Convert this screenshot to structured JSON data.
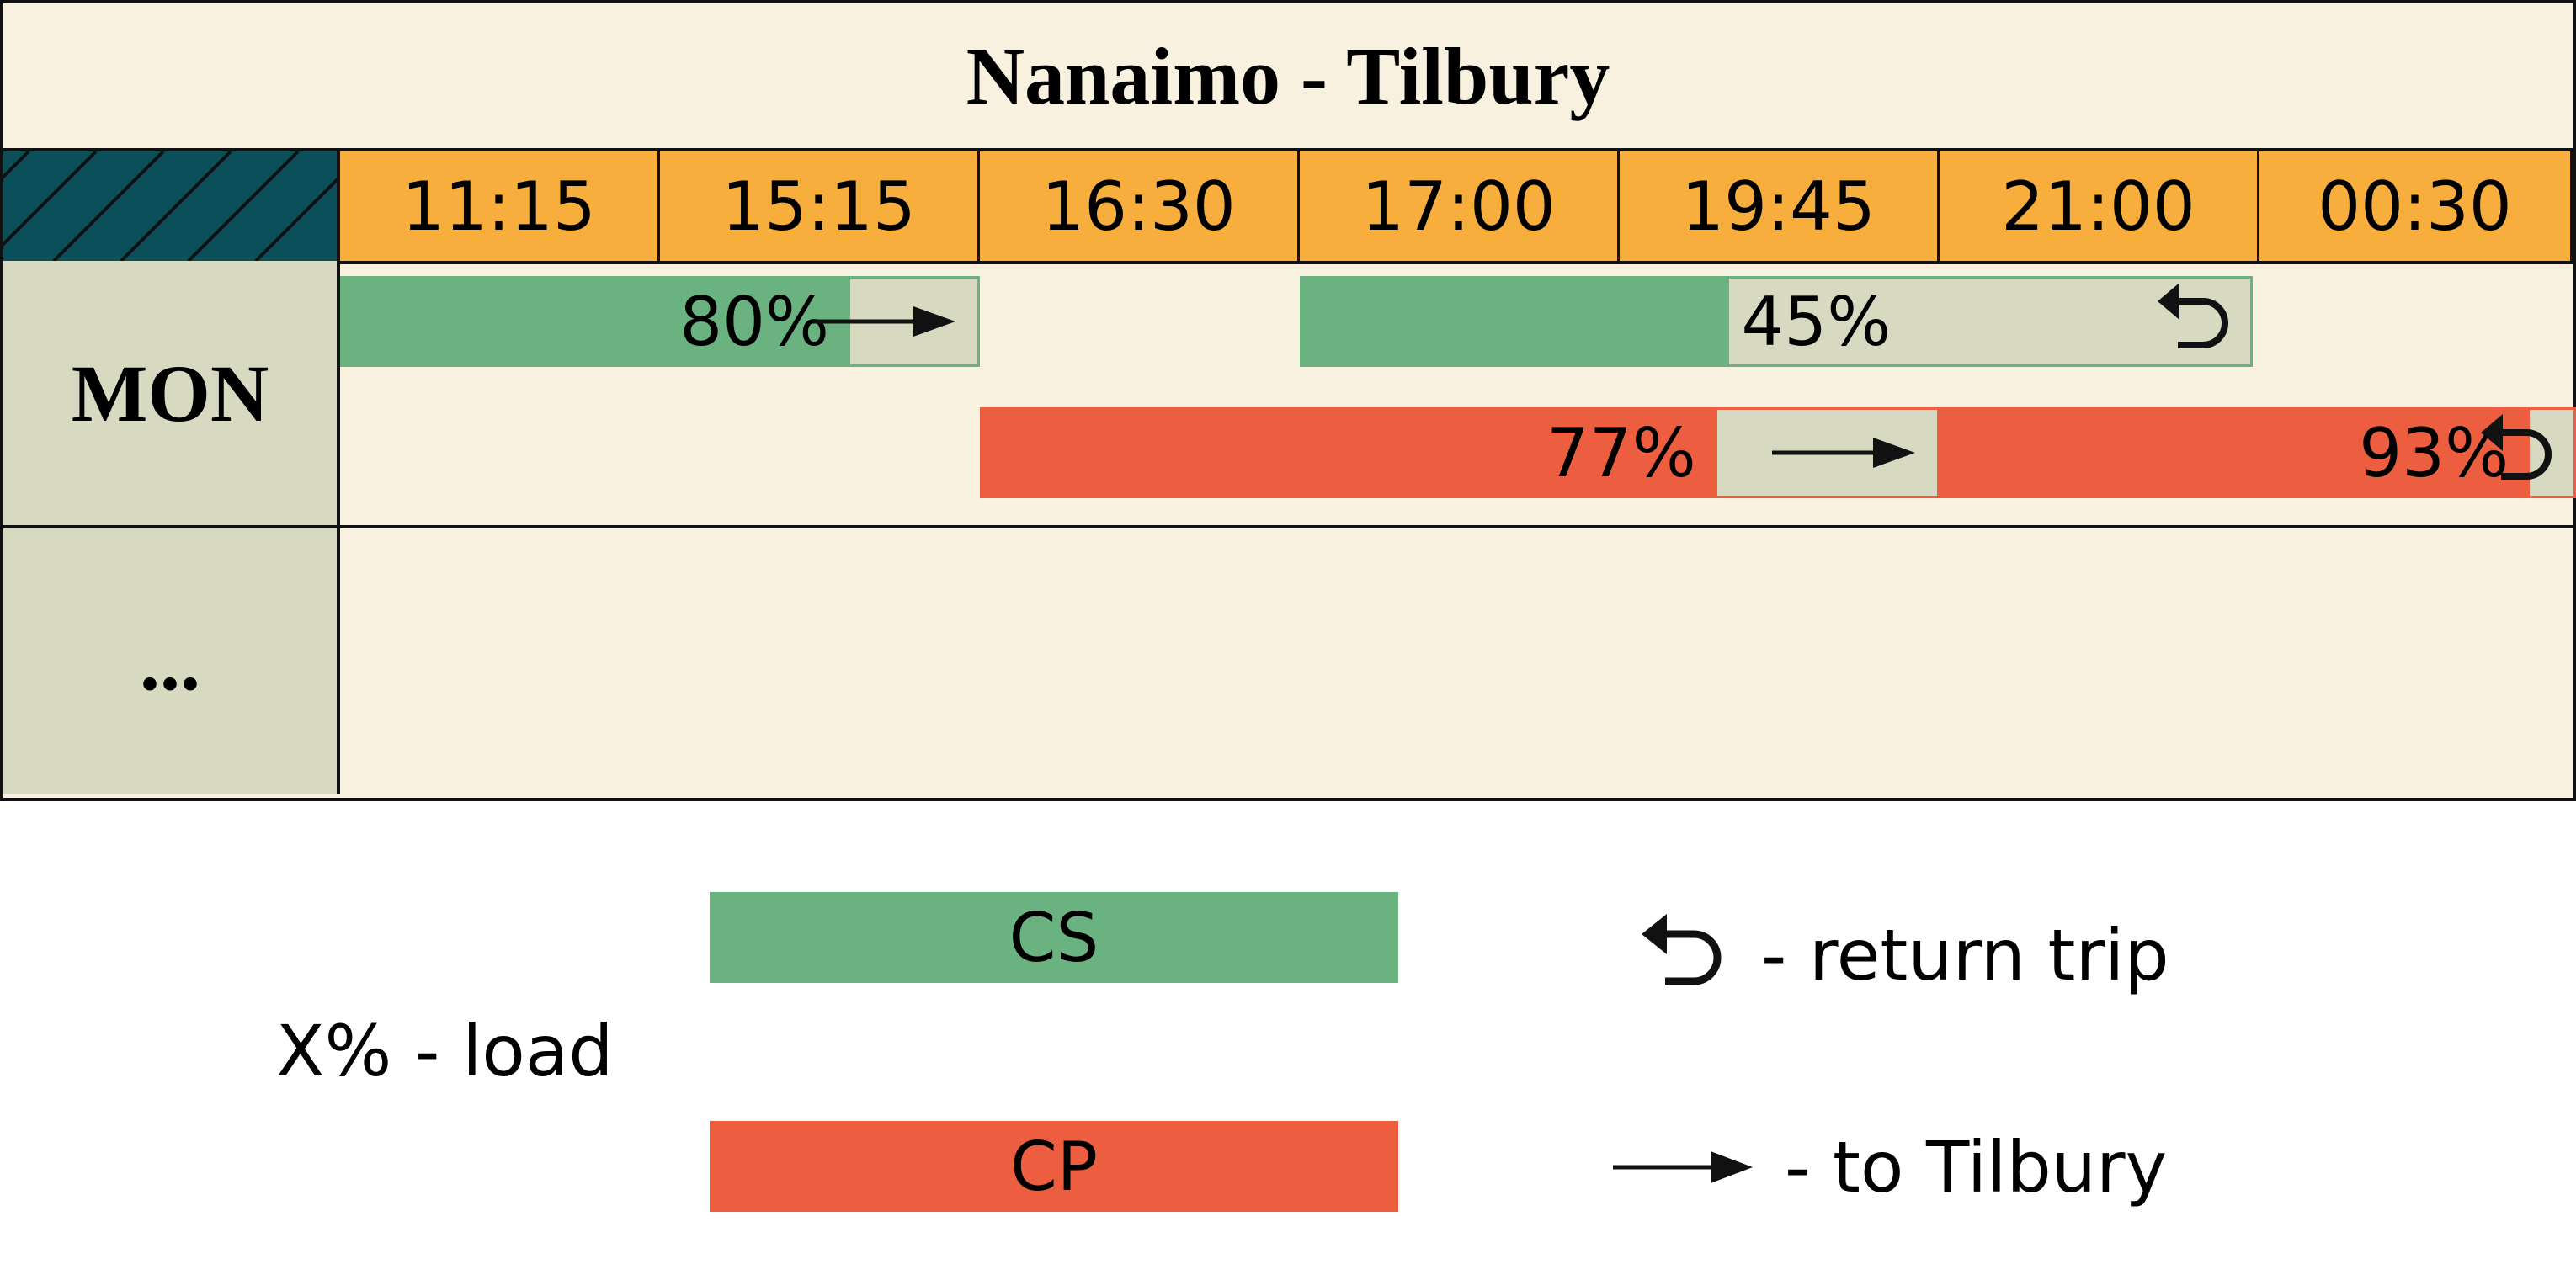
{
  "title": "Nanaimo - Tilbury",
  "times": [
    "11:15",
    "15:15",
    "16:30",
    "17:00",
    "19:45",
    "21:00",
    "00:30"
  ],
  "rows": [
    {
      "day": "MON"
    },
    {
      "day": "..."
    }
  ],
  "trips": [
    {
      "operator": "CS",
      "depart": "11:15",
      "arrive": "16:30",
      "load_percent": 80,
      "label": "80%",
      "direction": "to Tilbury"
    },
    {
      "operator": "CS",
      "depart": "17:00",
      "arrive": "00:30",
      "load_percent": 45,
      "label": "45%",
      "direction": "return trip"
    },
    {
      "operator": "CP",
      "depart": "16:30",
      "arrive": "21:00",
      "load_percent": 77,
      "label": "77%",
      "direction": "to Tilbury"
    },
    {
      "operator": "CP",
      "depart": "21:00",
      "arrive": "00:30",
      "load_percent": 93,
      "label": "93%",
      "direction": "return trip"
    }
  ],
  "legend": {
    "load_label": "X% - load",
    "cs_label": "CS",
    "cp_label": "CP",
    "return_label": "- return trip",
    "to_label": "- to Tilbury"
  },
  "colors": {
    "cs": "#6bb281",
    "cp": "#ec5e3f",
    "time_header": "#f7ae3c",
    "corner": "#0a4f5a",
    "background": "#f8f1df",
    "day_column": "#d7d9c1"
  },
  "icons": {
    "return": "return-arrow-icon",
    "to": "right-arrow-icon"
  }
}
